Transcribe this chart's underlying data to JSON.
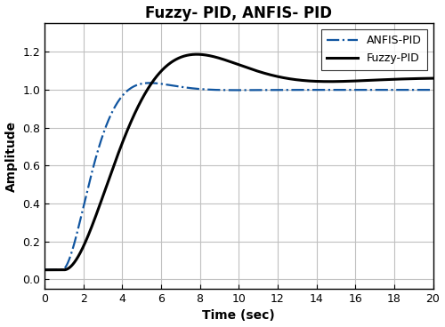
{
  "title": "Fuzzy- PID, ANFIS- PID",
  "xlabel": "Time (sec)",
  "ylabel": "Amplitude",
  "xlim": [
    0,
    20
  ],
  "ylim": [
    -0.05,
    1.35
  ],
  "yticks": [
    0.0,
    0.2,
    0.4,
    0.6,
    0.8,
    1.0,
    1.2
  ],
  "xticks": [
    0,
    2,
    4,
    6,
    8,
    10,
    12,
    14,
    16,
    18,
    20
  ],
  "fuzzy_pid_color": "#000000",
  "anfis_pid_color": "#1055a0",
  "grid_color": "#c0c0c0",
  "background_color": "#ffffff",
  "legend_labels": [
    "Fuzzy-PID",
    "ANFIS-PID"
  ],
  "title_fontsize": 12,
  "axis_label_fontsize": 10,
  "tick_fontsize": 9,
  "legend_fontsize": 9,
  "figsize": [
    5.0,
    3.68
  ],
  "dpi": 100
}
